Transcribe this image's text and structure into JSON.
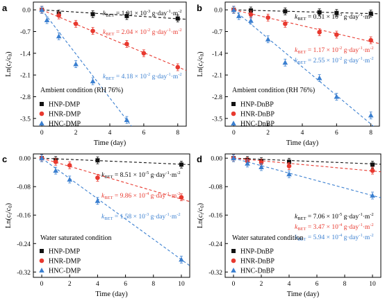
{
  "chart_data": [
    {
      "type": "scatter",
      "panel_label": "a",
      "xlabel": "Time (day)",
      "ylabel": "Ln(ct/c0)",
      "xlim": [
        -0.5,
        8.5
      ],
      "ylim": [
        -3.75,
        0.25
      ],
      "xticks": [
        0,
        2,
        4,
        6,
        8
      ],
      "yticks": [
        0.0,
        -0.7,
        -1.4,
        -2.1,
        -2.8,
        -3.5
      ],
      "ytick_labels": [
        "0.0",
        "-0.7",
        "-1.4",
        "-2.1",
        "-2.8",
        "-3.5"
      ],
      "condition": "Ambient condition (RH 76%)",
      "legend_position": "bottom-left",
      "series": [
        {
          "name": "HNP-DMP",
          "marker": "square",
          "color": "#111111",
          "x": [
            0,
            1,
            3,
            5,
            8
          ],
          "y": [
            0.0,
            -0.12,
            -0.14,
            -0.2,
            -0.28
          ],
          "fit_slope": -0.0358,
          "annotation": {
            "pre": "k",
            "sub": "BET",
            "text": " = 1.91 × 10",
            "exp": "-3",
            "post": " g·day",
            "unitexp1": "-1",
            "mid": "·m",
            "unitexp2": "-2"
          }
        },
        {
          "name": "HNR-DMP",
          "marker": "circle",
          "color": "#e8392f",
          "x": [
            0,
            1,
            2,
            3,
            5,
            6,
            8
          ],
          "y": [
            0.0,
            -0.18,
            -0.45,
            -0.68,
            -1.1,
            -1.4,
            -1.85
          ],
          "fit_slope": -0.23,
          "annotation": {
            "pre": "k",
            "sub": "BET",
            "text": " = 2.04 × 10",
            "exp": "-2",
            "post": " g·day",
            "unitexp1": "-1",
            "mid": "·m",
            "unitexp2": "-2"
          }
        },
        {
          "name": "HNC-DMP",
          "marker": "triangle",
          "color": "#3a7fd0",
          "x": [
            0,
            0.3,
            1,
            2,
            3,
            5
          ],
          "y": [
            0.0,
            -0.33,
            -0.85,
            -1.75,
            -2.3,
            -3.55
          ],
          "fit_slope": -0.71,
          "annotation": {
            "pre": "k",
            "sub": "BET",
            "text": " = 4.18 × 10",
            "exp": "-2",
            "post": " g·day",
            "unitexp1": "-1",
            "mid": "·m",
            "unitexp2": "-2"
          }
        }
      ]
    },
    {
      "type": "scatter",
      "panel_label": "b",
      "xlabel": "Time (day)",
      "ylabel": "Ln(ct/c0)",
      "xlim": [
        -0.5,
        8.5
      ],
      "ylim": [
        -3.75,
        0.25
      ],
      "xticks": [
        0,
        2,
        4,
        6,
        8
      ],
      "yticks": [
        0.0,
        -0.7,
        -1.4,
        -2.1,
        -2.8,
        -3.5
      ],
      "ytick_labels": [
        "0.0",
        "-0.7",
        "-1.4",
        "-2.1",
        "-2.8",
        "-3.5"
      ],
      "condition": "Ambient condition (RH 76%)",
      "legend_position": "bottom-left",
      "series": [
        {
          "name": "HNP-DnBP",
          "marker": "square",
          "color": "#111111",
          "x": [
            0,
            1,
            3,
            5,
            6,
            8
          ],
          "y": [
            0.0,
            -0.02,
            -0.05,
            -0.08,
            -0.1,
            -0.12
          ],
          "fit_slope": -0.015,
          "annotation": {
            "pre": "k",
            "sub": "BET",
            "text": " = 0.51 × 10",
            "exp": "-3",
            "post": " g·day",
            "unitexp1": "-1",
            "mid": "·m",
            "unitexp2": "-2"
          }
        },
        {
          "name": "HNR-DnBP",
          "marker": "circle",
          "color": "#e8392f",
          "x": [
            0,
            1,
            2,
            3,
            5,
            6,
            8
          ],
          "y": [
            0.0,
            -0.15,
            -0.25,
            -0.45,
            -0.72,
            -0.8,
            -0.98
          ],
          "fit_slope": -0.128,
          "annotation": {
            "pre": "k",
            "sub": "BET",
            "text": " = 1.17 × 10",
            "exp": "-2",
            "post": " g·day",
            "unitexp1": "-1",
            "mid": "·m",
            "unitexp2": "-2"
          }
        },
        {
          "name": "HNC-DnBP",
          "marker": "triangle",
          "color": "#3a7fd0",
          "x": [
            0,
            0.3,
            1,
            2,
            3,
            5,
            6,
            8
          ],
          "y": [
            0.0,
            -0.2,
            -0.35,
            -0.95,
            -1.7,
            -2.2,
            -2.8,
            -3.4
          ],
          "fit_slope": -0.46,
          "annotation": {
            "pre": "k",
            "sub": "BET",
            "text": " = 2.55 × 10",
            "exp": "-2",
            "post": " g·day",
            "unitexp1": "-1",
            "mid": "·m",
            "unitexp2": "-2"
          }
        }
      ]
    },
    {
      "type": "scatter",
      "panel_label": "c",
      "xlabel": "Time (day)",
      "ylabel": "Ln(ct/c0)",
      "xlim": [
        -0.6,
        10.6
      ],
      "ylim": [
        -0.335,
        0.012
      ],
      "xticks": [
        0,
        2,
        4,
        6,
        8,
        10
      ],
      "yticks": [
        0.0,
        -0.08,
        -0.16,
        -0.24,
        -0.32
      ],
      "ytick_labels": [
        "0.00",
        "-0.08",
        "-0.16",
        "-0.24",
        "-0.32"
      ],
      "condition": "Water saturated condition",
      "legend_position": "bottom-left",
      "series": [
        {
          "name": "HNP-DMP",
          "marker": "square",
          "color": "#111111",
          "x": [
            0,
            1,
            4,
            10
          ],
          "y": [
            0.0,
            -0.005,
            -0.006,
            -0.018
          ],
          "fit_slope": -0.0017,
          "annotation": {
            "pre": "k",
            "sub": "BET",
            "text": " = 8.51 × 10",
            "exp": "-5",
            "post": " g·day",
            "unitexp1": "-1",
            "mid": "·m",
            "unitexp2": "-2"
          }
        },
        {
          "name": "HNR-DMP",
          "marker": "circle",
          "color": "#e8392f",
          "x": [
            0,
            1,
            2,
            4,
            10
          ],
          "y": [
            0.0,
            -0.01,
            -0.02,
            -0.055,
            -0.11
          ],
          "fit_slope": -0.0115,
          "annotation": {
            "pre": "k",
            "sub": "BET",
            "text": " = 9.86 × 10",
            "exp": "-4",
            "post": " g·day",
            "unitexp1": "-1",
            "mid": "·m",
            "unitexp2": "-2"
          }
        },
        {
          "name": "HNC-DMP",
          "marker": "triangle",
          "color": "#3a7fd0",
          "x": [
            0,
            1,
            2,
            4,
            10
          ],
          "y": [
            0.0,
            -0.035,
            -0.06,
            -0.12,
            -0.285
          ],
          "fit_slope": -0.0285,
          "annotation": {
            "pre": "k",
            "sub": "BET",
            "text": " = 1.58 × 10",
            "exp": "-3",
            "post": " g·day",
            "unitexp1": "-1",
            "mid": "·m",
            "unitexp2": "-2"
          }
        }
      ]
    },
    {
      "type": "scatter",
      "panel_label": "d",
      "xlabel": "Time (day)",
      "ylabel": "Ln(ct/c0)",
      "xlim": [
        -0.6,
        10.6
      ],
      "ylim": [
        -0.335,
        0.012
      ],
      "xticks": [
        0,
        2,
        4,
        6,
        8,
        10
      ],
      "yticks": [
        0.0,
        -0.08,
        -0.16,
        -0.24,
        -0.32
      ],
      "ytick_labels": [
        "0.00",
        "-0.08",
        "-0.16",
        "-0.24",
        "-0.32"
      ],
      "condition": "Water saturated condition",
      "legend_position": "bottom-left",
      "series": [
        {
          "name": "HNP-DnBP",
          "marker": "square",
          "color": "#111111",
          "x": [
            0,
            1,
            2,
            4,
            10
          ],
          "y": [
            0.0,
            -0.005,
            -0.008,
            -0.01,
            -0.018
          ],
          "fit_slope": -0.0016,
          "annotation": {
            "pre": "k",
            "sub": "BET",
            "text": " = 7.06 × 10",
            "exp": "-5",
            "post": " g·day",
            "unitexp1": "-1",
            "mid": "·m",
            "unitexp2": "-2"
          }
        },
        {
          "name": "HNR-DnBP",
          "marker": "circle",
          "color": "#e8392f",
          "x": [
            0,
            1,
            2,
            4,
            10
          ],
          "y": [
            0.0,
            -0.008,
            -0.012,
            -0.022,
            -0.035
          ],
          "fit_slope": -0.0036,
          "annotation": {
            "pre": "k",
            "sub": "BET",
            "text": " = 3.47 × 10",
            "exp": "-4",
            "post": " g·day",
            "unitexp1": "-1",
            "mid": "·m",
            "unitexp2": "-2"
          }
        },
        {
          "name": "HNC-DnBP",
          "marker": "triangle",
          "color": "#3a7fd0",
          "x": [
            0,
            1,
            2,
            4,
            10
          ],
          "y": [
            0.0,
            -0.015,
            -0.025,
            -0.045,
            -0.105
          ],
          "fit_slope": -0.0105,
          "annotation": {
            "pre": "k",
            "sub": "BET",
            "text": " = 5.94 × 10",
            "exp": "-4",
            "post": " g·day",
            "unitexp1": "-1",
            "mid": "·m",
            "unitexp2": "-2"
          }
        }
      ]
    }
  ]
}
